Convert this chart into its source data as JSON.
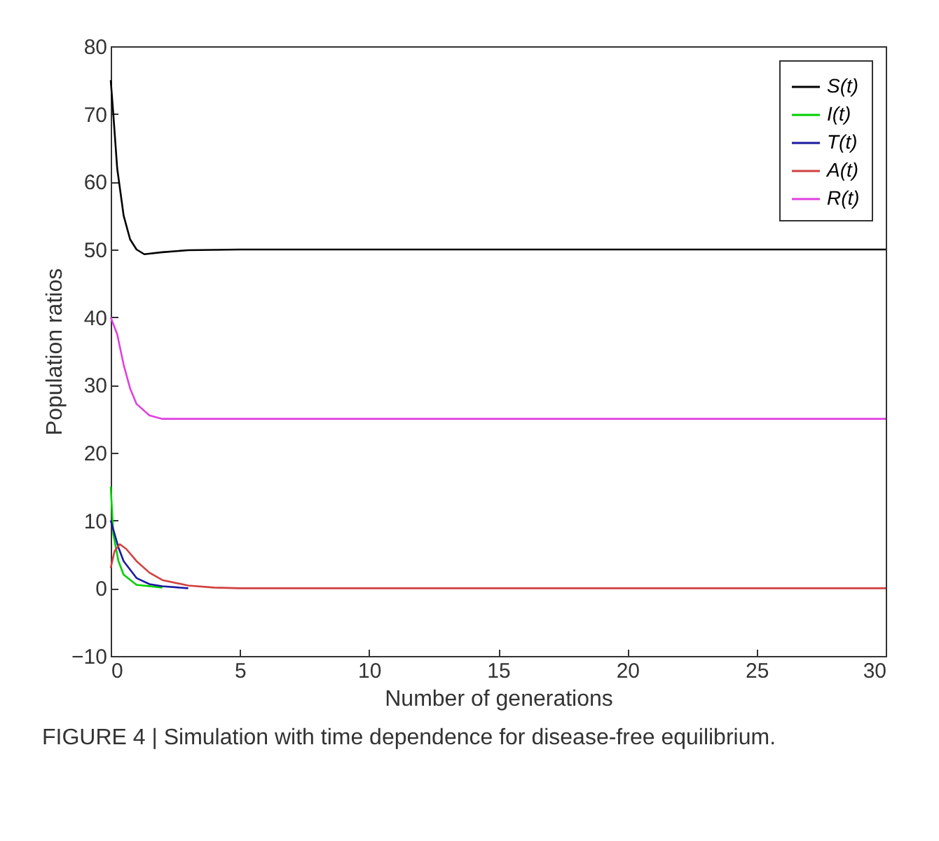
{
  "chart_data": {
    "type": "line",
    "xlabel": "Number of generations",
    "ylabel": "Population ratios",
    "annotations": [
      "FIGURE 4 | Simulation with time dependence for disease-free equilibrium."
    ],
    "xlim": [
      0,
      30
    ],
    "ylim": [
      -10,
      80
    ],
    "xticks": [
      0,
      5,
      10,
      15,
      20,
      25,
      30
    ],
    "yticks": [
      -10,
      0,
      10,
      20,
      30,
      40,
      50,
      60,
      70,
      80
    ],
    "grid": false,
    "legend": "top right",
    "marker": "none",
    "line_style": "solid",
    "series": [
      {
        "name": "S(t)",
        "color": "#000000",
        "x": [
          0,
          0.1,
          0.25,
          0.5,
          0.75,
          1,
          1.3,
          2,
          3,
          5,
          30
        ],
        "values": [
          75,
          70,
          62,
          55,
          51.5,
          50,
          49.3,
          49.6,
          49.9,
          50,
          50
        ]
      },
      {
        "name": "I(t)",
        "color": "#00d000",
        "x": [
          0,
          0.1,
          0.3,
          0.5,
          1,
          2
        ],
        "values": [
          15,
          8,
          4,
          2,
          0.5,
          0.1
        ]
      },
      {
        "name": "T(t)",
        "color": "#1a1aa0",
        "x": [
          0,
          0.3,
          0.5,
          1,
          1.5,
          2,
          3
        ],
        "values": [
          10,
          6,
          4,
          1.5,
          0.6,
          0.3,
          0
        ]
      },
      {
        "name": "A(t)",
        "color": "#d04040",
        "x": [
          0,
          0.15,
          0.35,
          0.6,
          1,
          1.5,
          2,
          3,
          4,
          5,
          30
        ],
        "values": [
          3,
          5.5,
          6.5,
          5.8,
          4,
          2.3,
          1.2,
          0.4,
          0.1,
          0,
          0
        ]
      },
      {
        "name": "R(t)",
        "color": "#e040e0",
        "x": [
          0,
          0.25,
          0.5,
          0.75,
          1,
          1.5,
          2,
          30
        ],
        "values": [
          40,
          37.5,
          33,
          29.5,
          27.2,
          25.5,
          25,
          25
        ]
      }
    ]
  }
}
